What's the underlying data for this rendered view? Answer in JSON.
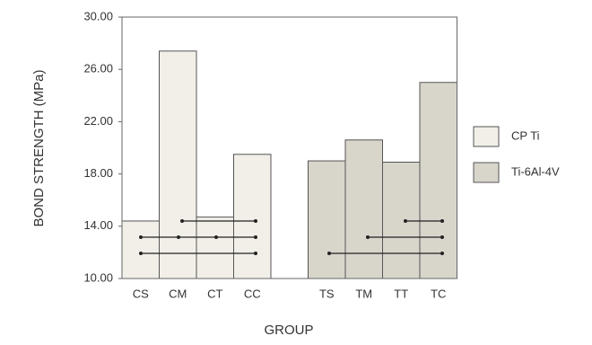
{
  "chart_data": {
    "type": "bar",
    "x_label": "GROUP",
    "y_label": "BOND STRENGTH (MPa)",
    "categories": [
      "CS",
      "CM",
      "CT",
      "CC",
      null,
      "TS",
      "TM",
      "TT",
      "TC"
    ],
    "series": [
      {
        "name": "CP Ti",
        "color": "#f1efe8",
        "values": [
          14.4,
          27.4,
          14.7,
          19.5,
          null,
          null,
          null,
          null,
          null
        ]
      },
      {
        "name": "Ti-6Al-4V",
        "color": "#d8d5cb",
        "values": [
          null,
          null,
          null,
          null,
          null,
          19.0,
          20.6,
          18.9,
          25.0
        ]
      }
    ],
    "ylim": [
      10,
      30
    ],
    "yticks": [
      {
        "value": 10,
        "label": "10.00"
      },
      {
        "value": 14,
        "label": "14.00"
      },
      {
        "value": 18,
        "label": "18.00"
      },
      {
        "value": 22,
        "label": "22.00"
      },
      {
        "value": 26,
        "label": "26.00"
      },
      {
        "value": 30,
        "label": "30.00"
      }
    ],
    "legend": "right"
  }
}
